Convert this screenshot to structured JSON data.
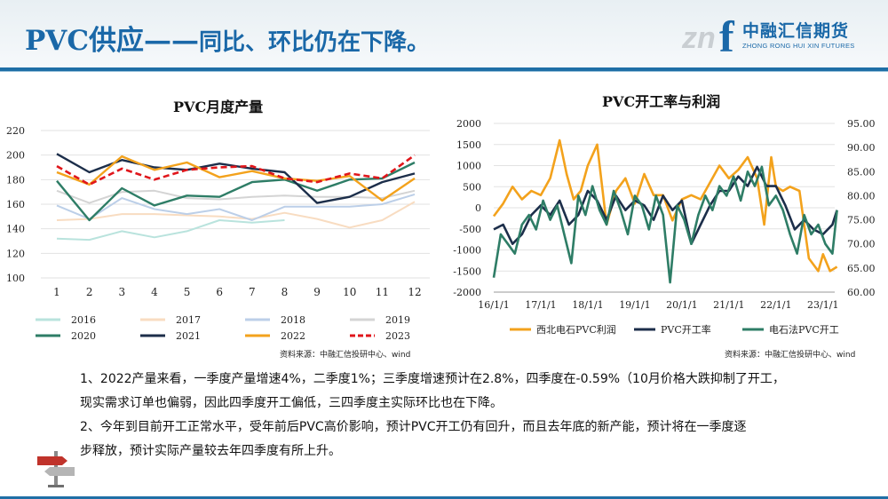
{
  "header": {
    "title_main": "PVC供应——",
    "title_sub": "同比、环比仍在下降。",
    "logo_cn": "中融汇信期货",
    "logo_en": "ZHONG RONG HUI XIN FUTURES",
    "logo_mark": "zn",
    "logo_f": "f"
  },
  "chart_data": [
    {
      "type": "line",
      "title": "PVC月度产量",
      "x": [
        "1",
        "2",
        "3",
        "4",
        "5",
        "6",
        "7",
        "8",
        "9",
        "10",
        "11",
        "12"
      ],
      "ylim": [
        100,
        220
      ],
      "yticks": [
        "220",
        "200",
        "180",
        "160",
        "140",
        "120",
        "100"
      ],
      "grid": true,
      "legend": "bottom",
      "series": [
        {
          "name": "2016",
          "color": "#b9e3dd",
          "dashed": false,
          "width": 2,
          "values": [
            132,
            131,
            138,
            133,
            138,
            147,
            145,
            147,
            null,
            null,
            null,
            150
          ]
        },
        {
          "name": "2017",
          "color": "#f8dcc1",
          "dashed": false,
          "width": 2,
          "values": [
            147,
            148,
            152,
            152,
            151,
            150,
            148,
            153,
            148,
            141,
            147,
            162
          ]
        },
        {
          "name": "2018",
          "color": "#bccfe8",
          "dashed": false,
          "width": 2,
          "values": [
            159,
            148,
            165,
            156,
            152,
            156,
            147,
            158,
            158,
            158,
            160,
            168
          ]
        },
        {
          "name": "2019",
          "color": "#d4d4d4",
          "dashed": false,
          "width": 2,
          "values": [
            171,
            161,
            170,
            171,
            165,
            164,
            166,
            167,
            166,
            166,
            165,
            171
          ]
        },
        {
          "name": "2020",
          "color": "#2e7d66",
          "dashed": false,
          "width": 2.4,
          "values": [
            179,
            147,
            173,
            159,
            167,
            166,
            178,
            180,
            171,
            180,
            181,
            194
          ]
        },
        {
          "name": "2021",
          "color": "#1c2e4a",
          "dashed": false,
          "width": 2.4,
          "values": [
            201,
            186,
            196,
            190,
            188,
            193,
            189,
            186,
            161,
            166,
            178,
            185
          ]
        },
        {
          "name": "2022",
          "color": "#f3a21c",
          "dashed": false,
          "width": 2.4,
          "values": [
            186,
            176,
            199,
            188,
            194,
            182,
            187,
            181,
            179,
            183,
            163,
            181
          ]
        },
        {
          "name": "2023",
          "color": "#e0161b",
          "dashed": true,
          "width": 2.6,
          "values": [
            191,
            176,
            189,
            180,
            188,
            190,
            191,
            181,
            178,
            185,
            181,
            200
          ]
        }
      ],
      "source": "资料来源：中融汇信投研中心、wind"
    },
    {
      "type": "line",
      "title": "PVC开工率与利润",
      "x_ticks": [
        "16/1/1",
        "17/1/1",
        "18/1/1",
        "19/1/1",
        "20/1/1",
        "21/1/1",
        "22/1/1",
        "23/1/1"
      ],
      "x_range": [
        "2016-01-01",
        "2023-04-01"
      ],
      "ylim_left": [
        -2000,
        2000
      ],
      "yticks_left": [
        "2000",
        "1500",
        "1000",
        "500",
        "0",
        "-500",
        "-1000",
        "-1500",
        "-2000"
      ],
      "ylim_right": [
        60,
        95
      ],
      "yticks_right": [
        "95.00",
        "90.00",
        "85.00",
        "80.00",
        "75.00",
        "70.00",
        "65.00",
        "60.00"
      ],
      "grid": true,
      "legend": "bottom",
      "series": [
        {
          "name": "西北电石PVC利润",
          "axis": "left",
          "color": "#f3a21c",
          "x": [
            2016.0,
            2016.2,
            2016.4,
            2016.6,
            2016.8,
            2017.0,
            2017.2,
            2017.4,
            2017.55,
            2017.7,
            2017.85,
            2018.0,
            2018.2,
            2018.4,
            2018.6,
            2018.8,
            2019.0,
            2019.2,
            2019.4,
            2019.6,
            2019.8,
            2020.0,
            2020.2,
            2020.4,
            2020.6,
            2020.8,
            2021.0,
            2021.2,
            2021.4,
            2021.6,
            2021.75,
            2021.9,
            2022.0,
            2022.15,
            2022.3,
            2022.5,
            2022.7,
            2022.9,
            2023.0,
            2023.15,
            2023.3
          ],
          "values": [
            -200,
            100,
            500,
            200,
            400,
            300,
            700,
            1600,
            800,
            200,
            400,
            1000,
            1500,
            -400,
            400,
            700,
            100,
            800,
            300,
            300,
            -300,
            200,
            300,
            200,
            600,
            1000,
            700,
            900,
            1200,
            700,
            -400,
            1200,
            500,
            400,
            500,
            400,
            -1200,
            -1500,
            -1100,
            -1500,
            -1400
          ]
        },
        {
          "name": "PVC开工率",
          "axis": "right",
          "color": "#1c2e4a",
          "x": [
            2016.0,
            2016.2,
            2016.4,
            2016.6,
            2016.8,
            2017.0,
            2017.2,
            2017.4,
            2017.6,
            2017.8,
            2018.0,
            2018.2,
            2018.4,
            2018.6,
            2018.8,
            2019.0,
            2019.2,
            2019.4,
            2019.6,
            2019.8,
            2020.0,
            2020.2,
            2020.4,
            2020.6,
            2020.8,
            2021.0,
            2021.2,
            2021.4,
            2021.6,
            2021.8,
            2022.0,
            2022.2,
            2022.4,
            2022.6,
            2022.8,
            2023.0,
            2023.2,
            2023.3
          ],
          "values": [
            73,
            74,
            70,
            72,
            76,
            78,
            76,
            79,
            74,
            76,
            81,
            79,
            75,
            80,
            77,
            79,
            78,
            75,
            80,
            77,
            79,
            70,
            74,
            78,
            81,
            81,
            84,
            82,
            86,
            82,
            82,
            78,
            73,
            75,
            73,
            72,
            74,
            77
          ]
        },
        {
          "name": "电石法PVC开工",
          "axis": "right",
          "color": "#2e7d66",
          "x": [
            2016.0,
            2016.15,
            2016.3,
            2016.45,
            2016.6,
            2016.75,
            2016.9,
            2017.05,
            2017.2,
            2017.35,
            2017.5,
            2017.65,
            2017.8,
            2017.95,
            2018.1,
            2018.25,
            2018.4,
            2018.55,
            2018.7,
            2018.85,
            2019.0,
            2019.15,
            2019.3,
            2019.45,
            2019.6,
            2019.75,
            2019.9,
            2020.05,
            2020.2,
            2020.35,
            2020.5,
            2020.65,
            2020.8,
            2020.95,
            2021.1,
            2021.25,
            2021.4,
            2021.55,
            2021.7,
            2021.85,
            2022.0,
            2022.15,
            2022.3,
            2022.45,
            2022.6,
            2022.75,
            2022.9,
            2023.05,
            2023.2,
            2023.3
          ],
          "values": [
            63,
            72,
            70,
            68,
            74,
            76,
            73,
            79,
            75,
            78,
            72,
            66,
            80,
            76,
            82,
            77,
            74,
            81,
            77,
            72,
            80,
            78,
            73,
            80,
            76,
            62,
            78,
            75,
            70,
            76,
            80,
            77,
            82,
            80,
            84,
            79,
            85,
            82,
            86,
            78,
            80,
            77,
            72,
            68,
            76,
            72,
            74,
            70,
            68,
            77
          ]
        }
      ],
      "source": "资料来源：中融汇信投研中心、wind"
    }
  ],
  "text": {
    "line1": "1、2022产量来看，一季度产量增速4%，二季度1%；三季度增速预计在2.8%，四季度在-0.59%（10月价格大跌抑制了开工，",
    "line2": "现实需求订单也偏弱，因此四季度开工偏低，三四季度主实际环比也在下降。",
    "line3": "2、今年到目前开工正常水平，受年前后PVC高价影响，预计PVC开工仍有回升，而且去年底的新产能，预计将在一季度逐",
    "line4": "步释放，预计实际产量较去年四季度有所上升。"
  }
}
